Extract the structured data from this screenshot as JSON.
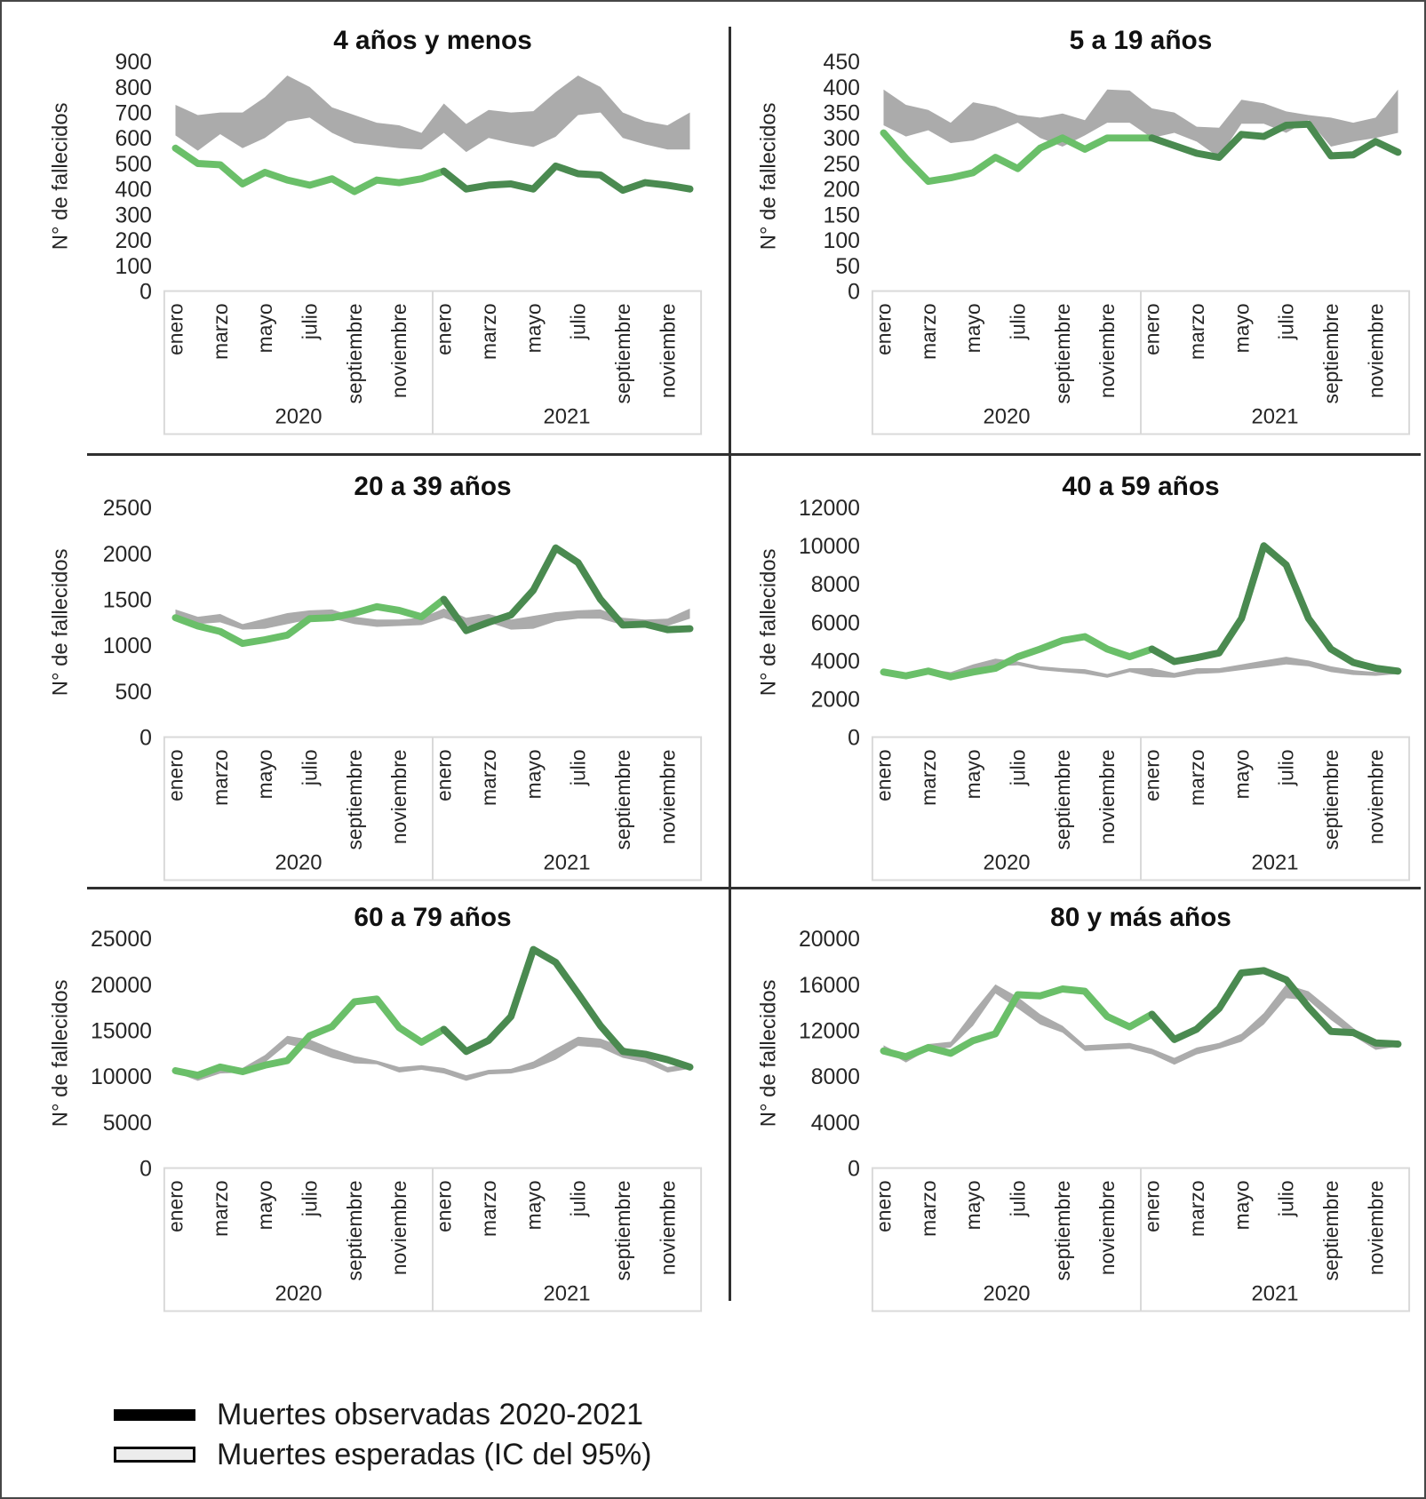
{
  "page": {
    "background": "#ffffff",
    "border_color": "#474747",
    "divider_color": "#2f2f2f"
  },
  "colors": {
    "observed_2020": "#6abf69",
    "observed_2021": "#4a8a50",
    "expected_band": "#ababab",
    "axis_box_border": "#d9d9d9",
    "text": "#262626"
  },
  "axis": {
    "ylabel": "N° de fallecidos",
    "month_labels": [
      "enero",
      "marzo",
      "mayo",
      "julio",
      "septiembre",
      "noviembre"
    ],
    "year_labels": [
      "2020",
      "2021"
    ]
  },
  "legend": {
    "items": [
      {
        "name": "observed",
        "label": "Muertes observadas 2020-2021",
        "swatch": "solid-black-line"
      },
      {
        "name": "expected",
        "label": "Muertes esperadas (IC del 95%)",
        "swatch": "outlined-gray-band"
      }
    ]
  },
  "chart_data": [
    {
      "type": "line",
      "title": "4 años y menos",
      "ylabel": "N° de fallecidos",
      "ylim": [
        0,
        900
      ],
      "yticks": [
        0,
        100,
        200,
        300,
        400,
        500,
        600,
        700,
        800,
        900
      ],
      "series": [
        {
          "name": "Muertes observadas 2020",
          "color": "#6abf69",
          "values": [
            560,
            500,
            495,
            420,
            465,
            435,
            415,
            440,
            390,
            435,
            425,
            440
          ]
        },
        {
          "name": "Muertes observadas 2021",
          "color": "#4a8a50",
          "values": [
            470,
            400,
            415,
            420,
            400,
            490,
            460,
            455,
            395,
            425,
            415,
            400
          ]
        },
        {
          "name": "Muertes esperadas IC95 superior",
          "color": "#ababab",
          "values": [
            730,
            690,
            700,
            700,
            760,
            845,
            800,
            720,
            690,
            660,
            650,
            620,
            735,
            655,
            710,
            700,
            705,
            780,
            845,
            800,
            700,
            665,
            650,
            700
          ]
        },
        {
          "name": "Muertes esperadas IC95 inferior",
          "color": "#ababab",
          "values": [
            610,
            550,
            615,
            560,
            600,
            665,
            680,
            620,
            580,
            570,
            560,
            555,
            620,
            545,
            600,
            580,
            565,
            605,
            690,
            700,
            600,
            575,
            555,
            555
          ]
        }
      ]
    },
    {
      "type": "line",
      "title": "5 a 19 años",
      "ylabel": "N° de fallecidos",
      "ylim": [
        0,
        450
      ],
      "yticks": [
        0,
        50,
        100,
        150,
        200,
        250,
        300,
        350,
        400,
        450
      ],
      "series": [
        {
          "name": "Muertes observadas 2020",
          "color": "#6abf69",
          "values": [
            310,
            260,
            215,
            222,
            232,
            262,
            240,
            280,
            300,
            278,
            300,
            300
          ]
        },
        {
          "name": "Muertes observadas 2021",
          "color": "#4a8a50",
          "values": [
            300,
            285,
            270,
            262,
            307,
            303,
            325,
            327,
            265,
            267,
            293,
            272
          ]
        },
        {
          "name": "Muertes esperadas IC95 superior",
          "color": "#ababab",
          "values": [
            395,
            365,
            355,
            330,
            370,
            362,
            345,
            340,
            348,
            335,
            395,
            393,
            358,
            350,
            322,
            320,
            375,
            368,
            352,
            345,
            340,
            330,
            340,
            395
          ]
        },
        {
          "name": "Muertes esperadas IC95 inferior",
          "color": "#ababab",
          "values": [
            325,
            303,
            315,
            290,
            295,
            312,
            330,
            300,
            283,
            305,
            330,
            330,
            300,
            310,
            293,
            262,
            328,
            328,
            310,
            335,
            283,
            293,
            300,
            310
          ]
        }
      ]
    },
    {
      "type": "line",
      "title": "20 a 39 años",
      "ylabel": "N° de fallecidos",
      "ylim": [
        0,
        2500
      ],
      "yticks": [
        0,
        500,
        1000,
        1500,
        2000,
        2500
      ],
      "series": [
        {
          "name": "Muertes observadas 2020",
          "color": "#6abf69",
          "values": [
            1300,
            1210,
            1150,
            1020,
            1060,
            1110,
            1290,
            1300,
            1350,
            1420,
            1380,
            1310
          ]
        },
        {
          "name": "Muertes observadas 2021",
          "color": "#4a8a50",
          "values": [
            1500,
            1160,
            1250,
            1330,
            1600,
            2060,
            1900,
            1500,
            1220,
            1230,
            1170,
            1180
          ]
        },
        {
          "name": "Muertes esperadas IC95 superior",
          "color": "#ababab",
          "values": [
            1390,
            1310,
            1340,
            1230,
            1290,
            1350,
            1380,
            1390,
            1310,
            1280,
            1280,
            1300,
            1400,
            1300,
            1340,
            1280,
            1320,
            1360,
            1380,
            1390,
            1300,
            1280,
            1290,
            1400
          ]
        },
        {
          "name": "Muertes esperadas IC95 inferior",
          "color": "#ababab",
          "values": [
            1290,
            1230,
            1250,
            1170,
            1180,
            1230,
            1280,
            1290,
            1230,
            1200,
            1210,
            1220,
            1300,
            1210,
            1250,
            1170,
            1180,
            1260,
            1290,
            1290,
            1220,
            1200,
            1210,
            1290
          ]
        }
      ]
    },
    {
      "type": "line",
      "title": "40 a 59 años",
      "ylabel": "N° de fallecidos",
      "ylim": [
        0,
        12000
      ],
      "yticks": [
        0,
        2000,
        4000,
        6000,
        8000,
        10000,
        12000
      ],
      "series": [
        {
          "name": "Muertes observadas 2020",
          "color": "#6abf69",
          "values": [
            3400,
            3200,
            3450,
            3150,
            3400,
            3600,
            4200,
            4600,
            5050,
            5250,
            4600,
            4200
          ]
        },
        {
          "name": "Muertes observadas 2021",
          "color": "#4a8a50",
          "values": [
            4600,
            3950,
            4150,
            4400,
            6200,
            10000,
            9000,
            6200,
            4600,
            3900,
            3600,
            3450
          ]
        },
        {
          "name": "Muertes esperadas IC95 superior",
          "color": "#ababab",
          "values": [
            3500,
            3350,
            3550,
            3400,
            3800,
            4100,
            3950,
            3700,
            3600,
            3550,
            3300,
            3600,
            3600,
            3350,
            3600,
            3600,
            3800,
            4000,
            4200,
            4000,
            3700,
            3500,
            3400,
            3500
          ]
        },
        {
          "name": "Muertes esperadas IC95 inferior",
          "color": "#ababab",
          "values": [
            3300,
            3150,
            3300,
            3200,
            3450,
            3700,
            3750,
            3500,
            3400,
            3300,
            3100,
            3400,
            3150,
            3100,
            3300,
            3350,
            3500,
            3650,
            3800,
            3700,
            3400,
            3250,
            3200,
            3300
          ]
        }
      ]
    },
    {
      "type": "line",
      "title": "60 a 79 años",
      "ylabel": "N° de fallecidos",
      "ylim": [
        0,
        25000
      ],
      "yticks": [
        0,
        5000,
        10000,
        15000,
        20000,
        25000
      ],
      "series": [
        {
          "name": "Muertes observadas 2020",
          "color": "#6abf69",
          "values": [
            10600,
            10100,
            11000,
            10500,
            11200,
            11700,
            14400,
            15400,
            18100,
            18400,
            15300,
            13700
          ]
        },
        {
          "name": "Muertes observadas 2021",
          "color": "#4a8a50",
          "values": [
            15100,
            12700,
            13900,
            16500,
            23800,
            22400,
            19000,
            15500,
            12700,
            12400,
            11800,
            11000
          ]
        },
        {
          "name": "Muertes esperadas IC95 superior",
          "color": "#ababab",
          "values": [
            10900,
            10100,
            10800,
            10900,
            12300,
            14400,
            14000,
            13000,
            12200,
            11700,
            11000,
            11200,
            10900,
            10100,
            10700,
            10800,
            11600,
            13000,
            14300,
            14100,
            13200,
            12200,
            11000,
            11300
          ]
        },
        {
          "name": "Muertes esperadas IC95 inferior",
          "color": "#ababab",
          "values": [
            10400,
            9500,
            10300,
            10400,
            11500,
            13500,
            12900,
            12000,
            11400,
            11300,
            10400,
            10700,
            10300,
            9500,
            10200,
            10300,
            10800,
            11800,
            13300,
            13100,
            12000,
            11500,
            10400,
            10800
          ]
        }
      ]
    },
    {
      "type": "line",
      "title": "80 y más años",
      "ylabel": "N° de fallecidos",
      "ylim": [
        0,
        20000
      ],
      "yticks": [
        0,
        4000,
        8000,
        12000,
        16000,
        20000
      ],
      "series": [
        {
          "name": "Muertes observadas 2020",
          "color": "#6abf69",
          "values": [
            10200,
            9700,
            10500,
            10000,
            11100,
            11700,
            15100,
            15000,
            15600,
            15400,
            13200,
            12300
          ]
        },
        {
          "name": "Muertes observadas 2021",
          "color": "#4a8a50",
          "values": [
            13400,
            11200,
            12100,
            13900,
            17000,
            17200,
            16400,
            14000,
            11900,
            11800,
            10900,
            10800
          ]
        },
        {
          "name": "Muertes esperadas IC95 superior",
          "color": "#ababab",
          "values": [
            10700,
            9700,
            10800,
            11000,
            13600,
            16000,
            14900,
            13400,
            12400,
            10700,
            10800,
            10900,
            10400,
            9600,
            10500,
            10900,
            11700,
            13500,
            16000,
            15400,
            13800,
            12200,
            10800,
            11100
          ]
        },
        {
          "name": "Muertes esperadas IC95 inferior",
          "color": "#ababab",
          "values": [
            10300,
            9200,
            10300,
            10500,
            12400,
            15200,
            13900,
            12500,
            11800,
            10200,
            10300,
            10400,
            9900,
            9000,
            9900,
            10400,
            11000,
            12500,
            14800,
            14600,
            12900,
            11500,
            10300,
            10600
          ]
        }
      ]
    }
  ]
}
